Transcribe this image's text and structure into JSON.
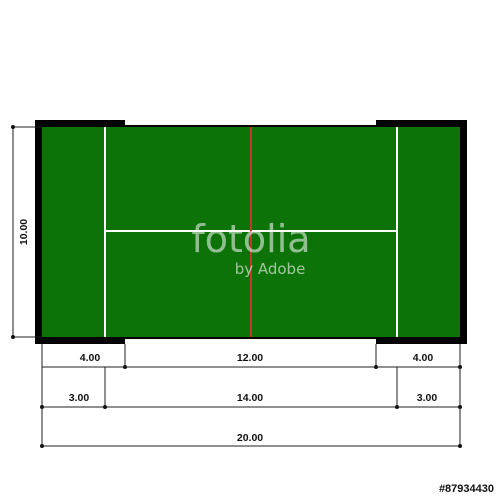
{
  "colors": {
    "court": "#0d7309",
    "wall": "#000000",
    "center_line": "#c0392b",
    "court_lines": "#ffffff"
  },
  "dimensions": {
    "height": "10.00",
    "top_row": [
      "4.00",
      "12.00",
      "4.00"
    ],
    "middle_row": [
      "3.00",
      "14.00",
      "3.00"
    ],
    "total": "20.00"
  },
  "watermark": {
    "brand": "fotolia",
    "sub": "by Adobe"
  },
  "stock_id": "#87934430"
}
